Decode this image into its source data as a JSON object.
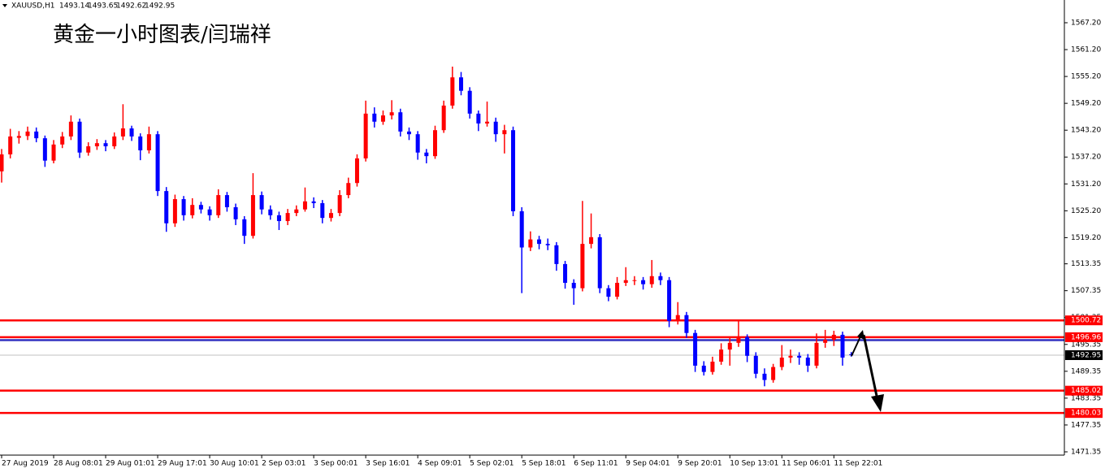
{
  "chart_data": {
    "type": "candlestick",
    "symbol": "XAUUSD,H1",
    "title": "黄金一小时图表/闫瑞祥",
    "up_color": "#ff0000",
    "down_color": "#0000ff",
    "ylim": [
      1470.62,
      1572.28
    ],
    "yticks": [
      {
        "value": 1567.2,
        "label": "1567.20"
      },
      {
        "value": 1561.2,
        "label": "1561.20"
      },
      {
        "value": 1555.2,
        "label": "1555.20"
      },
      {
        "value": 1549.2,
        "label": "1549.20"
      },
      {
        "value": 1543.2,
        "label": "1543.20"
      },
      {
        "value": 1537.2,
        "label": "1537.20"
      },
      {
        "value": 1531.2,
        "label": "1531.20"
      },
      {
        "value": 1525.2,
        "label": "1525.20"
      },
      {
        "value": 1519.2,
        "label": "1519.20"
      },
      1513.35,
      1507.35,
      1501.35,
      1495.35,
      1489.35,
      1483.35,
      1477.35,
      1471.35
    ],
    "categories": [
      "27 Aug 2019",
      null,
      null,
      null,
      null,
      null,
      "28 Aug 08:01",
      null,
      null,
      null,
      null,
      null,
      "29 Aug 01:01",
      null,
      null,
      null,
      null,
      null,
      "29 Aug 17:01",
      null,
      null,
      null,
      null,
      null,
      "30 Aug 10:01",
      null,
      null,
      null,
      null,
      null,
      "2 Sep 03:01",
      null,
      null,
      null,
      null,
      null,
      "3 Sep 00:01",
      null,
      null,
      null,
      null,
      null,
      "3 Sep 16:01",
      null,
      null,
      null,
      null,
      null,
      "4 Sep 09:01",
      null,
      null,
      null,
      null,
      null,
      "5 Sep 02:01",
      null,
      null,
      null,
      null,
      null,
      "5 Sep 18:01",
      null,
      null,
      null,
      null,
      null,
      "6 Sep 11:01",
      null,
      null,
      null,
      null,
      null,
      "9 Sep 04:01",
      null,
      null,
      null,
      null,
      null,
      "9 Sep 20:01",
      null,
      null,
      null,
      null,
      null,
      "10 Sep 13:01",
      null,
      null,
      null,
      null,
      null,
      "11 Sep 06:01",
      null,
      null,
      null,
      null,
      null,
      "11 Sep 22:01",
      null,
      null
    ],
    "candles": [
      [
        1534.0,
        1539.0,
        1531.5,
        1537.8
      ],
      [
        1537.8,
        1543.5,
        1536.9,
        1541.8
      ],
      [
        1541.5,
        1543.0,
        1540.2,
        1541.9
      ],
      [
        1541.9,
        1544.0,
        1541.0,
        1542.9
      ],
      [
        1542.9,
        1543.8,
        1540.5,
        1541.4
      ],
      [
        1541.4,
        1542.0,
        1535.0,
        1536.4
      ],
      [
        1536.4,
        1541.0,
        1535.8,
        1540.0
      ],
      [
        1540.0,
        1542.8,
        1539.2,
        1541.8
      ],
      [
        1541.8,
        1546.5,
        1541.0,
        1545.1
      ],
      [
        1545.1,
        1545.8,
        1537.0,
        1538.2
      ],
      [
        1538.2,
        1540.5,
        1537.5,
        1539.6
      ],
      [
        1539.6,
        1541.2,
        1538.8,
        1540.3
      ],
      [
        1540.3,
        1541.0,
        1538.5,
        1539.6
      ],
      [
        1539.6,
        1542.7,
        1539.0,
        1541.8
      ],
      [
        1541.8,
        1549.0,
        1541.0,
        1543.6
      ],
      [
        1543.6,
        1544.2,
        1540.8,
        1541.8
      ],
      [
        1541.8,
        1542.5,
        1536.5,
        1538.7
      ],
      [
        1538.7,
        1544.0,
        1538.0,
        1542.3
      ],
      [
        1542.3,
        1543.0,
        1528.5,
        1529.6
      ],
      [
        1529.6,
        1530.5,
        1520.5,
        1522.4
      ],
      [
        1522.4,
        1528.8,
        1521.6,
        1527.8
      ],
      [
        1527.8,
        1528.5,
        1523.0,
        1524.2
      ],
      [
        1524.2,
        1528.0,
        1523.5,
        1526.5
      ],
      [
        1526.5,
        1527.2,
        1524.6,
        1525.5
      ],
      [
        1525.5,
        1526.2,
        1523.0,
        1524.2
      ],
      [
        1524.2,
        1530.0,
        1523.6,
        1528.7
      ],
      [
        1528.7,
        1529.4,
        1525.0,
        1526.0
      ],
      [
        1526.0,
        1526.8,
        1522.0,
        1523.3
      ],
      [
        1523.3,
        1524.0,
        1517.8,
        1519.6
      ],
      [
        1519.6,
        1533.6,
        1519.0,
        1528.7
      ],
      [
        1528.7,
        1529.5,
        1524.4,
        1525.5
      ],
      [
        1525.5,
        1526.4,
        1523.2,
        1524.2
      ],
      [
        1524.2,
        1525.0,
        1520.9,
        1522.9
      ],
      [
        1522.9,
        1525.6,
        1522.0,
        1524.7
      ],
      [
        1524.7,
        1526.4,
        1524.0,
        1525.5
      ],
      [
        1525.5,
        1530.4,
        1525.0,
        1527.3
      ],
      [
        1527.3,
        1528.2,
        1525.8,
        1526.9
      ],
      [
        1526.9,
        1527.6,
        1522.4,
        1523.6
      ],
      [
        1523.6,
        1525.6,
        1522.8,
        1524.7
      ],
      [
        1524.7,
        1529.8,
        1524.0,
        1528.7
      ],
      [
        1528.7,
        1532.6,
        1528.0,
        1531.4
      ],
      [
        1531.4,
        1537.8,
        1530.6,
        1536.9
      ],
      [
        1536.9,
        1549.8,
        1536.2,
        1546.9
      ],
      [
        1546.9,
        1548.3,
        1543.8,
        1545.1
      ],
      [
        1545.1,
        1547.6,
        1544.4,
        1546.5
      ],
      [
        1546.5,
        1549.9,
        1545.6,
        1547.2
      ],
      [
        1547.2,
        1548.0,
        1541.8,
        1542.9
      ],
      [
        1542.9,
        1543.8,
        1541.0,
        1542.3
      ],
      [
        1542.3,
        1543.0,
        1536.6,
        1538.2
      ],
      [
        1538.2,
        1539.0,
        1535.8,
        1537.4
      ],
      [
        1537.4,
        1544.2,
        1536.8,
        1543.2
      ],
      [
        1543.2,
        1549.8,
        1542.6,
        1548.7
      ],
      [
        1548.7,
        1557.4,
        1548.0,
        1555.0
      ],
      [
        1555.0,
        1556.2,
        1551.0,
        1552.0
      ],
      [
        1552.0,
        1552.8,
        1545.8,
        1546.9
      ],
      [
        1546.9,
        1547.6,
        1543.0,
        1544.7
      ],
      [
        1544.7,
        1549.6,
        1544.0,
        1545.1
      ],
      [
        1545.1,
        1546.0,
        1540.6,
        1542.3
      ],
      [
        1542.3,
        1544.4,
        1538.0,
        1543.2
      ],
      [
        1543.2,
        1544.0,
        1524.0,
        1525.1
      ],
      [
        1525.1,
        1526.0,
        1506.8,
        1517.0
      ],
      [
        1517.0,
        1520.6,
        1516.2,
        1518.8
      ],
      [
        1518.8,
        1519.6,
        1516.6,
        1517.8
      ],
      [
        1517.8,
        1519.0,
        1516.4,
        1517.5
      ],
      [
        1517.5,
        1518.2,
        1511.8,
        1513.3
      ],
      [
        1513.3,
        1514.0,
        1507.8,
        1509.1
      ],
      [
        1509.1,
        1509.9,
        1504.2,
        1507.9
      ],
      [
        1507.9,
        1527.4,
        1507.2,
        1517.8
      ],
      [
        1517.8,
        1524.6,
        1516.8,
        1519.3
      ],
      [
        1519.3,
        1520.0,
        1506.8,
        1507.9
      ],
      [
        1507.9,
        1508.6,
        1505.0,
        1506.0
      ],
      [
        1506.0,
        1510.4,
        1505.4,
        1509.1
      ],
      [
        1509.1,
        1512.6,
        1508.4,
        1509.7
      ],
      [
        1509.7,
        1510.6,
        1508.6,
        1509.7
      ],
      [
        1509.7,
        1510.4,
        1507.6,
        1508.8
      ],
      [
        1508.8,
        1514.2,
        1508.0,
        1510.6
      ],
      [
        1510.6,
        1511.4,
        1508.6,
        1509.7
      ],
      [
        1509.7,
        1510.4,
        1499.2,
        1500.6
      ],
      [
        1500.6,
        1504.8,
        1499.8,
        1501.9
      ],
      [
        1501.9,
        1502.6,
        1496.8,
        1497.9
      ],
      [
        1497.9,
        1498.6,
        1489.2,
        1490.6
      ],
      [
        1490.6,
        1491.6,
        1488.4,
        1489.2
      ],
      [
        1489.2,
        1492.6,
        1488.6,
        1491.5
      ],
      [
        1491.5,
        1495.6,
        1490.8,
        1494.2
      ],
      [
        1494.2,
        1496.8,
        1490.6,
        1495.7
      ],
      [
        1495.7,
        1500.6,
        1494.8,
        1497.0
      ],
      [
        1497.0,
        1497.6,
        1491.4,
        1492.8
      ],
      [
        1492.8,
        1493.6,
        1487.8,
        1488.8
      ],
      [
        1488.8,
        1490.0,
        1486.0,
        1487.4
      ],
      [
        1487.4,
        1491.0,
        1486.8,
        1490.3
      ],
      [
        1490.3,
        1495.2,
        1489.6,
        1492.4
      ],
      [
        1492.4,
        1494.2,
        1491.2,
        1492.8
      ],
      [
        1492.8,
        1493.6,
        1490.8,
        1492.4
      ],
      [
        1492.4,
        1493.2,
        1489.2,
        1490.6
      ],
      [
        1490.6,
        1497.8,
        1490.0,
        1495.7
      ],
      [
        1495.7,
        1498.6,
        1494.6,
        1496.4
      ],
      [
        1496.4,
        1498.4,
        1495.0,
        1497.5
      ],
      [
        1497.5,
        1498.2,
        1490.6,
        1492.4
      ],
      [
        1493.14,
        1493.65,
        1492.62,
        1492.95
      ]
    ],
    "levels": [
      {
        "value": 1500.72,
        "color": "#ff0000",
        "tag": true
      },
      {
        "value": 1496.96,
        "color": "#ff0000",
        "tag": true
      },
      {
        "value": 1496.3,
        "color": "#3030c0",
        "tag": false
      },
      {
        "value": 1485.02,
        "color": "#ff0000",
        "tag": true
      },
      {
        "value": 1480.03,
        "color": "#ff0000",
        "tag": true
      }
    ],
    "last_price": 1492.95
  }
}
